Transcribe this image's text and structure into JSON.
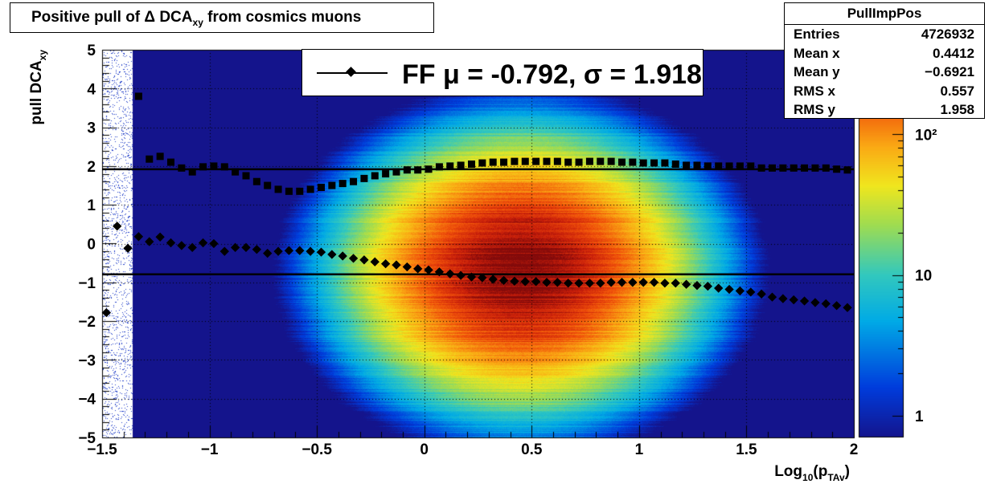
{
  "title": {
    "main": "Positive pull of Δ DCA",
    "sub": "xy",
    "tail": " from cosmics muons"
  },
  "stats": {
    "name": "PullImpPos",
    "rows": [
      {
        "label": "Entries",
        "value": "4726932"
      },
      {
        "label": "Mean x",
        "value": "0.4412"
      },
      {
        "label": "Mean y",
        "value": "−0.6921"
      },
      {
        "label": "RMS x",
        "value": "0.557"
      },
      {
        "label": "RMS y",
        "value": "1.958"
      }
    ]
  },
  "legend": {
    "text": "FF μ = -0.792, σ =   1.918"
  },
  "chart_data": {
    "type": "heatmap",
    "xlabel": "Log10(pTAv)",
    "ylabel": "pull DCAxy",
    "xlim": [
      -1.5,
      2
    ],
    "ylim": [
      -5,
      5
    ],
    "x_ticks": [
      -1.5,
      -1,
      -0.5,
      0,
      0.5,
      1,
      1.5,
      2
    ],
    "x_tick_labels": [
      "−1.5",
      "−1",
      "−0.5",
      "0",
      "0.5",
      "1",
      "1.5",
      "2"
    ],
    "y_ticks": [
      -5,
      -4,
      -3,
      -2,
      -1,
      0,
      1,
      2,
      3,
      4,
      5
    ],
    "y_tick_labels": [
      "−5",
      "−4",
      "−3",
      "−2",
      "−1",
      "0",
      "1",
      "2",
      "3",
      "4",
      "5"
    ],
    "colorbar": {
      "scale": "log",
      "range": [
        0.7,
        400
      ],
      "tick_labels": [
        "1",
        "10",
        "10²"
      ]
    },
    "grid": true,
    "density_center": {
      "x": 0.45,
      "y": -0.7
    },
    "fit_lines": {
      "mean": -0.792,
      "sigma": 1.918
    },
    "mean_profile": {
      "x": [
        -1.48,
        -1.43,
        -1.38,
        -1.33,
        -1.28,
        -1.23,
        -1.18,
        -1.13,
        -1.08,
        -1.03,
        -0.98,
        -0.93,
        -0.88,
        -0.83,
        -0.78,
        -0.73,
        -0.68,
        -0.63,
        -0.58,
        -0.53,
        -0.48,
        -0.43,
        -0.38,
        -0.33,
        -0.28,
        -0.23,
        -0.18,
        -0.13,
        -0.08,
        -0.03,
        0.02,
        0.07,
        0.12,
        0.17,
        0.22,
        0.27,
        0.32,
        0.37,
        0.42,
        0.47,
        0.52,
        0.57,
        0.62,
        0.67,
        0.72,
        0.77,
        0.82,
        0.87,
        0.92,
        0.97,
        1.02,
        1.07,
        1.12,
        1.17,
        1.22,
        1.27,
        1.32,
        1.37,
        1.42,
        1.47,
        1.52,
        1.57,
        1.62,
        1.67,
        1.72,
        1.77,
        1.82,
        1.87,
        1.92,
        1.97
      ],
      "y": [
        -1.78,
        0.45,
        -0.12,
        0.18,
        0.05,
        0.17,
        0.02,
        -0.05,
        -0.1,
        0.02,
        0.0,
        -0.2,
        -0.1,
        -0.1,
        -0.15,
        -0.25,
        -0.2,
        -0.18,
        -0.18,
        -0.2,
        -0.22,
        -0.28,
        -0.32,
        -0.38,
        -0.42,
        -0.47,
        -0.52,
        -0.55,
        -0.6,
        -0.65,
        -0.68,
        -0.73,
        -0.78,
        -0.82,
        -0.86,
        -0.88,
        -0.92,
        -0.95,
        -0.97,
        -0.98,
        -0.98,
        -1.0,
        -1.0,
        -1.02,
        -1.02,
        -1.02,
        -1.02,
        -1.0,
        -1.0,
        -1.0,
        -1.0,
        -1.0,
        -1.02,
        -1.02,
        -1.05,
        -1.08,
        -1.1,
        -1.15,
        -1.18,
        -1.22,
        -1.25,
        -1.3,
        -1.38,
        -1.42,
        -1.45,
        -1.48,
        -1.52,
        -1.55,
        -1.6,
        -1.65
      ]
    },
    "sigma_profile": {
      "x": [
        -1.33,
        -1.28,
        -1.23,
        -1.18,
        -1.13,
        -1.08,
        -1.03,
        -0.98,
        -0.93,
        -0.88,
        -0.83,
        -0.78,
        -0.73,
        -0.68,
        -0.63,
        -0.58,
        -0.53,
        -0.48,
        -0.43,
        -0.38,
        -0.33,
        -0.28,
        -0.23,
        -0.18,
        -0.13,
        -0.08,
        -0.03,
        0.02,
        0.07,
        0.12,
        0.17,
        0.22,
        0.27,
        0.32,
        0.37,
        0.42,
        0.47,
        0.52,
        0.57,
        0.62,
        0.67,
        0.72,
        0.77,
        0.82,
        0.87,
        0.92,
        0.97,
        1.02,
        1.07,
        1.12,
        1.17,
        1.22,
        1.27,
        1.32,
        1.37,
        1.42,
        1.47,
        1.52,
        1.57,
        1.62,
        1.67,
        1.72,
        1.77,
        1.82,
        1.87,
        1.92,
        1.97
      ],
      "y": [
        3.8,
        2.18,
        2.25,
        2.1,
        1.95,
        1.85,
        1.98,
        2.0,
        1.98,
        1.85,
        1.75,
        1.6,
        1.5,
        1.4,
        1.35,
        1.35,
        1.4,
        1.45,
        1.5,
        1.55,
        1.6,
        1.68,
        1.75,
        1.8,
        1.85,
        1.9,
        1.9,
        1.92,
        1.98,
        2.0,
        2.02,
        2.05,
        2.08,
        2.1,
        2.1,
        2.12,
        2.12,
        2.12,
        2.12,
        2.12,
        2.1,
        2.1,
        2.12,
        2.12,
        2.12,
        2.1,
        2.1,
        2.08,
        2.08,
        2.08,
        2.05,
        2.02,
        2.02,
        2.0,
        2.0,
        2.0,
        2.0,
        2.0,
        1.95,
        1.95,
        1.95,
        1.95,
        1.95,
        1.95,
        1.95,
        1.92,
        1.9
      ]
    }
  }
}
